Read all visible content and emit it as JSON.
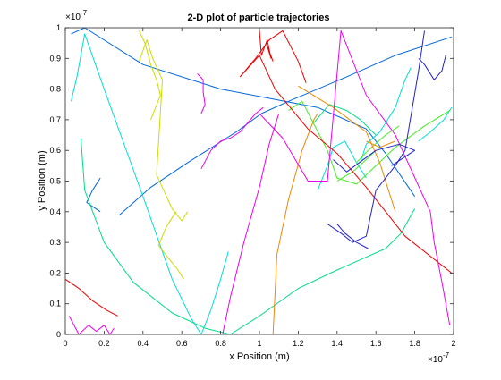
{
  "chart_data": {
    "type": "line",
    "title": "2-D plot of particle trajectories",
    "xlabel": "x Position (m)",
    "ylabel": "y Position (m)",
    "x_exponent_label": "×10",
    "x_exponent_power": "-7",
    "y_exponent_label": "×10",
    "y_exponent_power": "-7",
    "xlim": [
      0,
      2
    ],
    "ylim": [
      0,
      1
    ],
    "x_ticks": [
      0,
      0.2,
      0.4,
      0.6,
      0.8,
      1,
      1.2,
      1.4,
      1.6,
      1.8,
      2
    ],
    "x_tick_labels": [
      "0",
      "0.2",
      "0.4",
      "0.6",
      "0.8",
      "1",
      "1.2",
      "1.4",
      "1.6",
      "1.8",
      "2"
    ],
    "y_ticks": [
      0,
      0.1,
      0.2,
      0.3,
      0.4,
      0.5,
      0.6,
      0.7,
      0.8,
      0.9,
      1
    ],
    "y_tick_labels": [
      "0",
      "0.1",
      "0.2",
      "0.3",
      "0.4",
      "0.5",
      "0.6",
      "0.7",
      "0.8",
      "0.9",
      "1"
    ],
    "grid": false,
    "legend": "none",
    "series": [
      {
        "color": "#0066dd",
        "x": [
          0.03,
          0.1,
          0.4,
          0.8,
          1.3,
          1.55,
          1.65,
          1.8
        ],
        "y": [
          0.98,
          1.0,
          0.88,
          0.8,
          0.74,
          0.67,
          0.59,
          0.45
        ]
      },
      {
        "color": "#0066dd",
        "x": [
          0.28,
          0.44,
          0.63,
          0.88,
          1.01,
          1.15,
          1.45,
          1.7,
          1.99
        ],
        "y": [
          0.39,
          0.48,
          0.56,
          0.66,
          0.72,
          0.76,
          0.84,
          0.91,
          0.97
        ]
      },
      {
        "color": "#0066dd",
        "x": [
          0.18,
          0.11,
          0.14,
          0.18
        ],
        "y": [
          0.4,
          0.43,
          0.47,
          0.51
        ]
      },
      {
        "color": "#00dddd",
        "x": [
          0.03,
          0.06,
          0.1,
          0.2,
          0.4,
          0.55,
          0.65,
          0.7
        ],
        "y": [
          0.76,
          0.84,
          0.98,
          0.8,
          0.45,
          0.18,
          0.05,
          0.0
        ]
      },
      {
        "color": "#00dddd",
        "x": [
          0.7,
          0.75,
          0.8,
          0.84
        ],
        "y": [
          0.0,
          0.08,
          0.18,
          0.27
        ]
      },
      {
        "color": "#00dddd",
        "x": [
          1.3,
          1.35,
          1.38,
          1.44,
          1.5,
          1.55
        ],
        "y": [
          0.47,
          0.55,
          0.61,
          0.63,
          0.56,
          0.51
        ]
      },
      {
        "color": "#00dddd",
        "x": [
          1.52,
          1.55,
          1.62,
          1.7,
          1.75,
          1.78
        ],
        "y": [
          0.56,
          0.62,
          0.66,
          0.74,
          0.83,
          0.87
        ]
      },
      {
        "color": "#00dddd",
        "x": [
          1.82,
          1.88,
          1.95,
          1.99
        ],
        "y": [
          0.63,
          0.66,
          0.7,
          0.74
        ]
      },
      {
        "color": "#00dd88",
        "x": [
          0.08,
          0.1,
          0.2,
          0.35,
          0.55,
          0.72,
          0.85
        ],
        "y": [
          0.64,
          0.47,
          0.3,
          0.17,
          0.07,
          0.02,
          0.0
        ]
      },
      {
        "color": "#00dd88",
        "x": [
          0.85,
          1.0,
          1.2,
          1.4,
          1.65,
          1.73,
          1.8
        ],
        "y": [
          0.0,
          0.06,
          0.15,
          0.21,
          0.28,
          0.33,
          0.41
        ]
      },
      {
        "color": "#00dd88",
        "x": [
          1.28,
          1.36,
          1.45,
          1.52,
          1.6
        ],
        "y": [
          0.69,
          0.75,
          0.73,
          0.7,
          0.65
        ]
      },
      {
        "color": "#44ee22",
        "x": [
          1.15,
          1.22,
          1.35,
          1.4,
          1.5,
          1.7,
          1.85,
          1.98
        ],
        "y": [
          0.73,
          0.76,
          0.6,
          0.51,
          0.49,
          0.61,
          0.68,
          0.73
        ]
      },
      {
        "color": "#44ee22",
        "x": [
          1.5,
          1.56,
          1.65,
          1.72
        ],
        "y": [
          0.56,
          0.6,
          0.65,
          0.68
        ]
      },
      {
        "color": "#44ee22",
        "x": [
          1.4,
          1.48,
          1.55,
          1.6
        ],
        "y": [
          0.5,
          0.53,
          0.57,
          0.6
        ]
      },
      {
        "color": "#ccdd00",
        "x": [
          0.38,
          0.42,
          0.45,
          0.5,
          0.47,
          0.55,
          0.6,
          0.63
        ],
        "y": [
          0.89,
          0.96,
          0.9,
          0.83,
          0.52,
          0.41,
          0.37,
          0.4
        ]
      },
      {
        "color": "#ccdd00",
        "x": [
          0.38,
          0.41,
          0.44,
          0.47,
          0.49,
          0.44
        ],
        "y": [
          0.99,
          0.95,
          0.88,
          0.83,
          0.78,
          0.7
        ]
      },
      {
        "color": "#ccdd00",
        "x": [
          0.57,
          0.52,
          0.48,
          0.53,
          0.58,
          0.61
        ],
        "y": [
          0.4,
          0.35,
          0.29,
          0.25,
          0.21,
          0.18
        ]
      },
      {
        "color": "#ee8800",
        "x": [
          1.07,
          1.09,
          1.15,
          1.22,
          1.28,
          1.3
        ],
        "y": [
          0.0,
          0.26,
          0.44,
          0.6,
          0.7,
          0.72
        ]
      },
      {
        "color": "#ee8800",
        "x": [
          1.2,
          1.38,
          1.55,
          1.62,
          1.66,
          1.7
        ],
        "y": [
          0.81,
          0.74,
          0.66,
          0.56,
          0.48,
          0.4
        ]
      },
      {
        "color": "#ee8800",
        "x": [
          1.55,
          1.62,
          1.7
        ],
        "y": [
          0.63,
          0.61,
          0.63
        ]
      },
      {
        "color": "#ee0000",
        "x": [
          0.0,
          0.07,
          0.14,
          0.21,
          0.27
        ],
        "y": [
          0.18,
          0.15,
          0.11,
          0.08,
          0.06
        ]
      },
      {
        "color": "#ee0000",
        "x": [
          0.9,
          1.0,
          1.08,
          1.25,
          1.4,
          1.55,
          1.75,
          1.99
        ],
        "y": [
          0.84,
          0.91,
          0.8,
          0.67,
          0.59,
          0.48,
          0.32,
          0.2
        ]
      },
      {
        "color": "#ee0000",
        "x": [
          0.9,
          0.98,
          1.05,
          1.12,
          1.2,
          1.24
        ],
        "y": [
          0.84,
          0.9,
          0.96,
          0.99,
          0.89,
          0.82
        ]
      },
      {
        "color": "#ee0000",
        "x": [
          1.0,
          1.01,
          1.04,
          1.06,
          1.04,
          1.07
        ],
        "y": [
          0.99,
          0.91,
          0.96,
          0.9,
          0.94,
          0.89
        ]
      },
      {
        "color": "#ee00ee",
        "x": [
          0.81,
          0.85,
          0.92,
          1.0,
          1.05,
          1.1
        ],
        "y": [
          0.0,
          0.12,
          0.3,
          0.48,
          0.62,
          0.72
        ]
      },
      {
        "color": "#ee00ee",
        "x": [
          0.7,
          0.75,
          0.8,
          0.85,
          0.9,
          0.98,
          1.02
        ],
        "y": [
          0.54,
          0.6,
          0.63,
          0.64,
          0.66,
          0.72,
          0.74
        ]
      },
      {
        "color": "#ee00ee",
        "x": [
          0.02,
          0.07,
          0.12,
          0.16,
          0.2,
          0.23,
          0.25
        ],
        "y": [
          0.06,
          0.0,
          0.03,
          0.01,
          0.03,
          0.0,
          0.02
        ]
      },
      {
        "color": "#ee00ee",
        "x": [
          1.0,
          1.12,
          1.25,
          1.35,
          1.42,
          1.55,
          1.7,
          1.88
        ],
        "y": [
          0.72,
          0.64,
          0.5,
          0.5,
          0.99,
          0.78,
          0.65,
          0.4
        ]
      },
      {
        "color": "#ee00ee",
        "x": [
          1.88,
          1.9,
          1.94,
          1.98
        ],
        "y": [
          0.4,
          0.3,
          0.17,
          0.03
        ]
      },
      {
        "color": "#ee00ee",
        "x": [
          0.68,
          0.71,
          0.71,
          0.72,
          0.7
        ],
        "y": [
          0.85,
          0.83,
          0.79,
          0.75,
          0.72
        ]
      },
      {
        "color": "#2222cc",
        "x": [
          1.35,
          1.42,
          1.48,
          1.55,
          1.6,
          1.7,
          1.75,
          1.82,
          1.85
        ],
        "y": [
          0.36,
          0.33,
          0.3,
          0.32,
          0.47,
          0.55,
          0.6,
          0.86,
          0.99
        ]
      },
      {
        "color": "#2222cc",
        "x": [
          1.38,
          1.45,
          1.6,
          1.72,
          1.8,
          1.68
        ],
        "y": [
          0.57,
          0.53,
          0.6,
          0.62,
          0.6,
          0.55
        ]
      },
      {
        "color": "#2222cc",
        "x": [
          1.4,
          1.44,
          1.5,
          1.56
        ],
        "y": [
          0.36,
          0.33,
          0.3,
          0.28
        ]
      },
      {
        "color": "#2222cc",
        "x": [
          1.82,
          1.85,
          1.9,
          1.94,
          1.96
        ],
        "y": [
          0.9,
          0.88,
          0.83,
          0.86,
          0.91
        ]
      }
    ]
  }
}
